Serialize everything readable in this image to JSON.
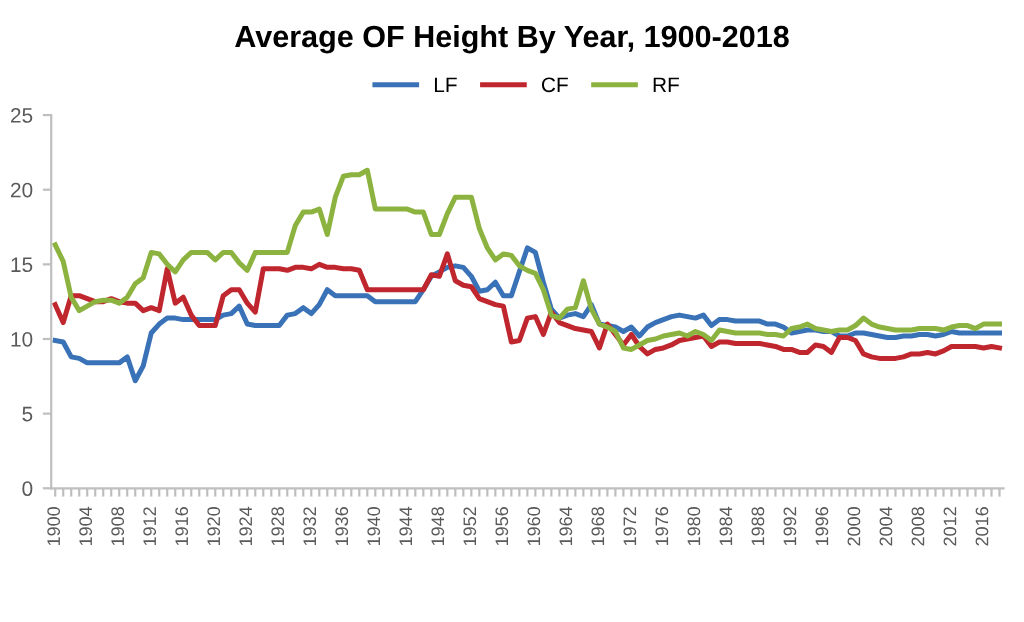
{
  "chart_data": {
    "type": "line",
    "title": "Average OF Height By Year, 1900-2018",
    "categories": [
      "1900",
      null,
      null,
      null,
      "1904",
      null,
      null,
      null,
      "1908",
      null,
      null,
      null,
      "1912",
      null,
      null,
      null,
      "1916",
      null,
      null,
      null,
      "1920",
      null,
      null,
      null,
      "1924",
      null,
      null,
      null,
      "1928",
      null,
      null,
      null,
      "1932",
      null,
      null,
      null,
      "1936",
      null,
      null,
      null,
      "1940",
      null,
      null,
      null,
      "1944",
      null,
      null,
      null,
      "1948",
      null,
      null,
      null,
      "1952",
      null,
      null,
      null,
      "1956",
      null,
      null,
      null,
      "1960",
      null,
      null,
      null,
      "1964",
      null,
      null,
      null,
      "1968",
      null,
      null,
      null,
      "1972",
      null,
      null,
      null,
      "1976",
      null,
      null,
      null,
      "1980",
      null,
      null,
      null,
      "1984",
      null,
      null,
      null,
      "1988",
      null,
      null,
      null,
      "1992",
      null,
      null,
      null,
      "1996",
      null,
      null,
      null,
      "2000",
      null,
      null,
      null,
      "2004",
      null,
      null,
      null,
      "2008",
      null,
      null,
      null,
      "2012",
      null,
      null,
      null,
      "2016",
      null,
      null
    ],
    "series": [
      {
        "name": "LF",
        "color": "#3a72b8",
        "values": [
          9.9,
          9.8,
          8.8,
          8.7,
          8.4,
          8.4,
          8.4,
          8.4,
          8.4,
          8.8,
          7.2,
          8.2,
          10.4,
          11.0,
          11.4,
          11.4,
          11.3,
          11.3,
          11.3,
          11.3,
          11.3,
          11.6,
          11.7,
          12.2,
          11.0,
          10.9,
          10.9,
          10.9,
          10.9,
          11.6,
          11.7,
          12.1,
          11.7,
          12.3,
          13.3,
          12.9,
          12.9,
          12.9,
          12.9,
          12.9,
          12.5,
          12.5,
          12.5,
          12.5,
          12.5,
          12.5,
          13.3,
          14.2,
          14.5,
          14.8,
          14.9,
          14.8,
          14.2,
          13.2,
          13.3,
          13.8,
          12.9,
          12.9,
          14.5,
          16.1,
          15.8,
          13.8,
          12.0,
          11.4,
          11.6,
          11.7,
          11.5,
          12.3,
          11.0,
          10.9,
          10.8,
          10.5,
          10.8,
          10.2,
          10.8,
          11.1,
          11.3,
          11.5,
          11.6,
          11.5,
          11.4,
          11.6,
          10.9,
          11.3,
          11.3,
          11.2,
          11.2,
          11.2,
          11.2,
          11.0,
          11.0,
          10.8,
          10.4,
          10.5,
          10.6,
          10.6,
          10.5,
          10.5,
          10.2,
          10.2,
          10.4,
          10.4,
          10.3,
          10.2,
          10.1,
          10.1,
          10.2,
          10.2,
          10.3,
          10.3,
          10.2,
          10.3,
          10.5,
          10.4,
          10.4,
          10.4,
          10.4,
          10.4,
          10.4
        ]
      },
      {
        "name": "CF",
        "color": "#c0262d",
        "values": [
          12.3,
          11.1,
          12.9,
          12.9,
          12.7,
          12.5,
          12.5,
          12.7,
          12.5,
          12.4,
          12.4,
          11.9,
          12.1,
          11.9,
          14.7,
          12.4,
          12.8,
          11.6,
          10.9,
          10.9,
          10.9,
          12.9,
          13.3,
          13.3,
          12.4,
          11.8,
          14.7,
          14.7,
          14.7,
          14.6,
          14.8,
          14.8,
          14.7,
          15.0,
          14.8,
          14.8,
          14.7,
          14.7,
          14.6,
          13.3,
          13.3,
          13.3,
          13.3,
          13.3,
          13.3,
          13.3,
          13.3,
          14.3,
          14.2,
          15.7,
          13.9,
          13.6,
          13.5,
          12.7,
          12.5,
          12.3,
          12.2,
          9.8,
          9.9,
          11.4,
          11.5,
          10.3,
          11.8,
          11.1,
          10.9,
          10.7,
          10.6,
          10.5,
          9.4,
          11.0,
          10.3,
          9.6,
          10.3,
          9.5,
          9.0,
          9.3,
          9.4,
          9.6,
          9.9,
          10.0,
          10.1,
          10.2,
          9.5,
          9.8,
          9.8,
          9.7,
          9.7,
          9.7,
          9.7,
          9.6,
          9.5,
          9.3,
          9.3,
          9.1,
          9.1,
          9.6,
          9.5,
          9.1,
          10.1,
          10.1,
          9.9,
          9.0,
          8.8,
          8.7,
          8.7,
          8.7,
          8.8,
          9.0,
          9.0,
          9.1,
          9.0,
          9.2,
          9.5,
          9.5,
          9.5,
          9.5,
          9.4,
          9.5,
          9.4
        ]
      },
      {
        "name": "RF",
        "color": "#8cb33f",
        "values": [
          16.3,
          15.2,
          12.8,
          11.9,
          12.2,
          12.5,
          12.6,
          12.6,
          12.4,
          12.8,
          13.7,
          14.1,
          15.8,
          15.7,
          15.0,
          14.5,
          15.3,
          15.8,
          15.8,
          15.8,
          15.3,
          15.8,
          15.8,
          15.1,
          14.6,
          15.8,
          15.8,
          15.8,
          15.8,
          15.8,
          17.6,
          18.5,
          18.5,
          18.7,
          17.0,
          19.5,
          20.9,
          21.0,
          21.0,
          21.3,
          18.7,
          18.7,
          18.7,
          18.7,
          18.7,
          18.5,
          18.5,
          17.0,
          17.0,
          18.4,
          19.5,
          19.5,
          19.5,
          17.4,
          16.1,
          15.3,
          15.7,
          15.6,
          14.9,
          14.6,
          14.4,
          13.3,
          11.6,
          11.4,
          12.0,
          12.1,
          13.9,
          12.0,
          11.0,
          10.8,
          10.5,
          9.4,
          9.3,
          9.6,
          9.9,
          10.0,
          10.2,
          10.3,
          10.4,
          10.2,
          10.5,
          10.3,
          9.9,
          10.6,
          10.5,
          10.4,
          10.4,
          10.4,
          10.4,
          10.3,
          10.3,
          10.2,
          10.7,
          10.8,
          11.0,
          10.7,
          10.6,
          10.5,
          10.6,
          10.6,
          10.9,
          11.4,
          11.0,
          10.8,
          10.7,
          10.6,
          10.6,
          10.6,
          10.7,
          10.7,
          10.7,
          10.6,
          10.8,
          10.9,
          10.9,
          10.7,
          11.0,
          11.0,
          11.0
        ]
      }
    ],
    "ylim": [
      0,
      25
    ],
    "yticks": [
      0,
      5,
      10,
      15,
      20,
      25
    ],
    "grid": false,
    "legend": "top",
    "marker": "none",
    "line_style": "solid"
  }
}
